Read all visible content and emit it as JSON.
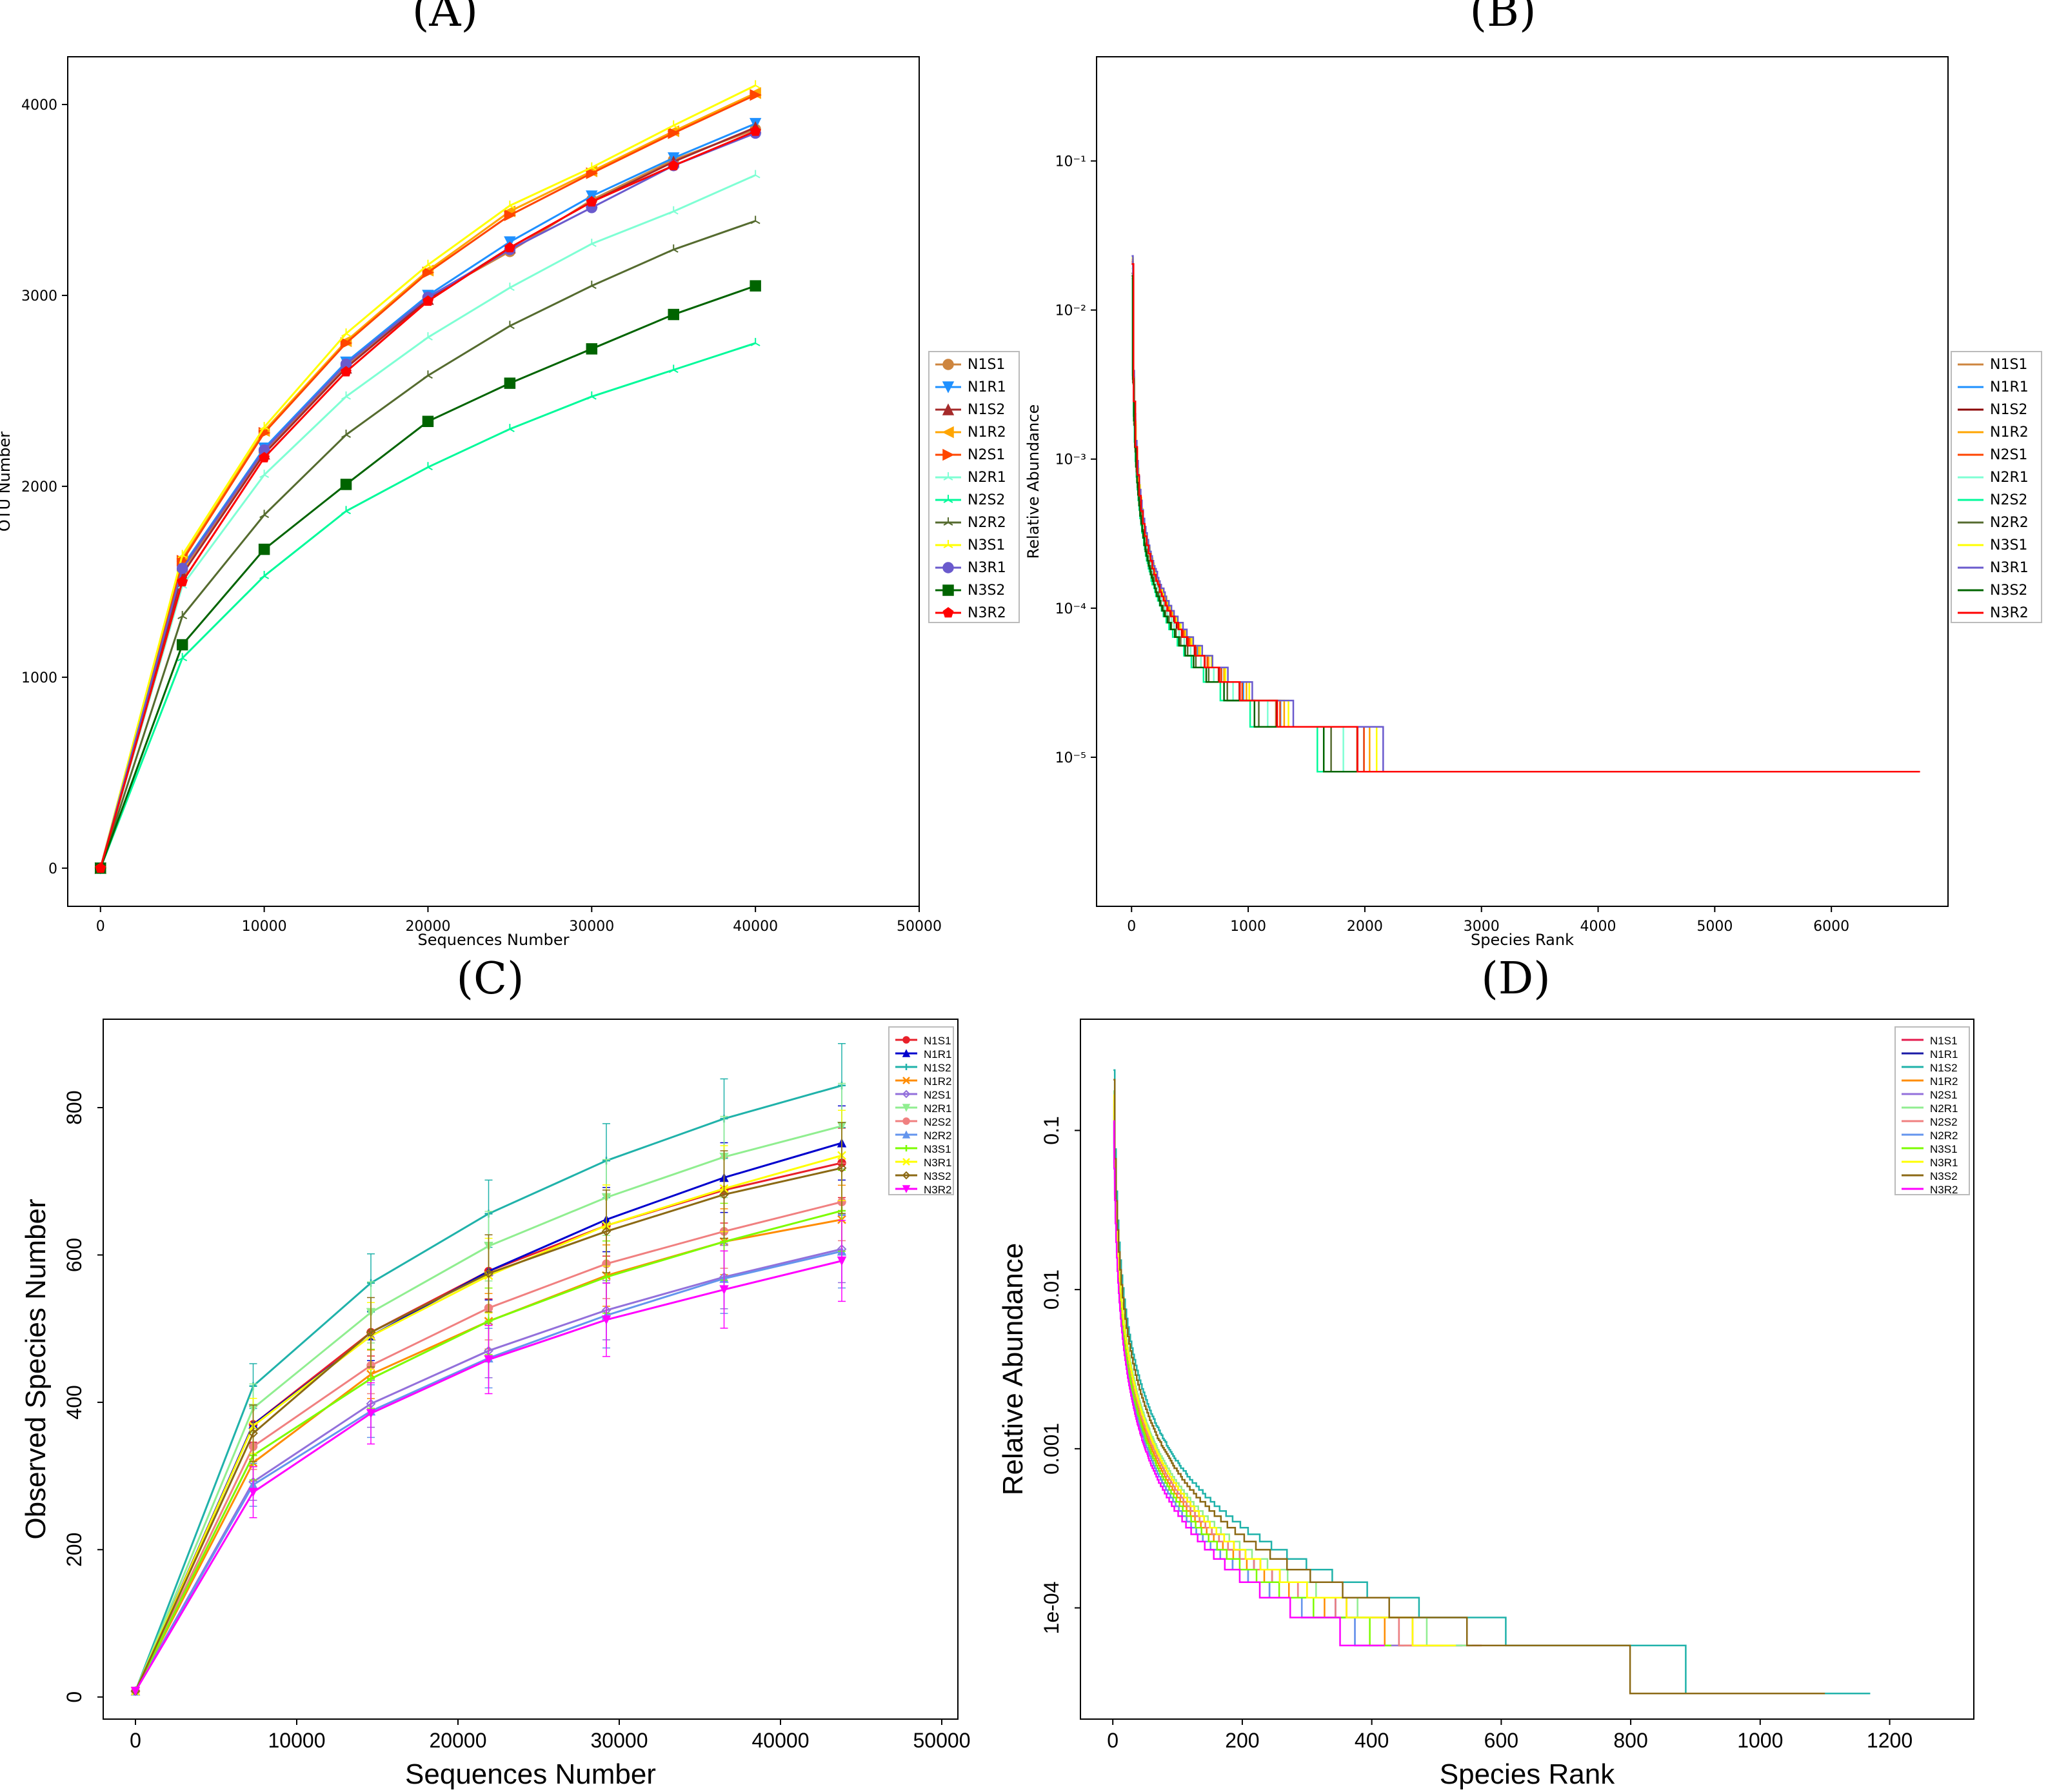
{
  "chart_data": [
    {
      "panel": "(A)",
      "type": "line",
      "xlabel": "Sequences Number",
      "ylabel": "OTU Number",
      "xlim": [
        -2000,
        50000
      ],
      "ylim": [
        -200,
        4250
      ],
      "xticks": [
        0,
        10000,
        20000,
        30000,
        40000,
        50000
      ],
      "yticks": [
        0,
        1000,
        2000,
        3000,
        4000
      ],
      "grid": false,
      "legend": "right",
      "x": [
        0,
        5000,
        10000,
        15000,
        20000,
        25000,
        30000,
        35000,
        40000
      ],
      "series": [
        {
          "name": "N1S1",
          "color": "#cd853f",
          "marker": "circle",
          "values": [
            0,
            1560,
            2180,
            2630,
            2990,
            3230,
            3500,
            3710,
            3870
          ]
        },
        {
          "name": "N1R1",
          "color": "#1e90ff",
          "marker": "triangle-down",
          "values": [
            0,
            1580,
            2200,
            2650,
            3000,
            3280,
            3520,
            3720,
            3900
          ]
        },
        {
          "name": "N1S2",
          "color": "#a52a2a",
          "marker": "triangle-up",
          "values": [
            0,
            1540,
            2170,
            2620,
            2980,
            3250,
            3490,
            3700,
            3880
          ]
        },
        {
          "name": "N1R2",
          "color": "#ffa500",
          "marker": "triangle-left",
          "values": [
            0,
            1620,
            2290,
            2760,
            3130,
            3440,
            3650,
            3860,
            4060
          ]
        },
        {
          "name": "N2S1",
          "color": "#ff4500",
          "marker": "triangle-right",
          "values": [
            0,
            1610,
            2280,
            2750,
            3120,
            3420,
            3640,
            3850,
            4050
          ]
        },
        {
          "name": "N2R1",
          "color": "#7fffd4",
          "marker": "tri",
          "values": [
            0,
            1480,
            2060,
            2470,
            2780,
            3040,
            3270,
            3440,
            3630
          ]
        },
        {
          "name": "N2S2",
          "color": "#00fa9a",
          "marker": "tri",
          "values": [
            0,
            1100,
            1530,
            1870,
            2100,
            2300,
            2470,
            2610,
            2750
          ]
        },
        {
          "name": "N2R2",
          "color": "#556b2f",
          "marker": "tri",
          "values": [
            0,
            1320,
            1850,
            2270,
            2580,
            2840,
            3050,
            3240,
            3390
          ]
        },
        {
          "name": "N3S1",
          "color": "#ffff00",
          "marker": "tri",
          "values": [
            0,
            1640,
            2310,
            2800,
            3160,
            3470,
            3670,
            3890,
            4100
          ]
        },
        {
          "name": "N3R1",
          "color": "#6a5acd",
          "marker": "circle",
          "values": [
            0,
            1570,
            2190,
            2640,
            2990,
            3240,
            3460,
            3680,
            3850
          ]
        },
        {
          "name": "N3S2",
          "color": "#006400",
          "marker": "square",
          "values": [
            0,
            1170,
            1670,
            2010,
            2340,
            2540,
            2720,
            2900,
            3050
          ]
        },
        {
          "name": "N3R2",
          "color": "#ff0000",
          "marker": "pentagon",
          "values": [
            0,
            1500,
            2150,
            2600,
            2970,
            3250,
            3490,
            3680,
            3860
          ]
        }
      ]
    },
    {
      "panel": "(B)",
      "type": "line",
      "xlabel": "Species Rank",
      "ylabel": "Relative Abundance",
      "xscale": "linear",
      "yscale": "log",
      "xlim": [
        -300,
        7000
      ],
      "ylim": [
        1e-06,
        0.5
      ],
      "xticks": [
        0,
        1000,
        2000,
        3000,
        4000,
        5000,
        6000
      ],
      "yticks": [
        0.1,
        0.01,
        0.001,
        0.0001,
        1e-05
      ],
      "ytick_labels": [
        "10⁻¹",
        "10⁻²",
        "10⁻³",
        "10⁻⁴",
        "10⁻⁵"
      ],
      "grid": false,
      "legend": "right",
      "series": [
        {
          "name": "N1S1",
          "color": "#cd853f",
          "max_rank": 4800,
          "c": 0.6
        },
        {
          "name": "N1R1",
          "color": "#1e90ff",
          "max_rank": 4700,
          "c": 0.62
        },
        {
          "name": "N1S2",
          "color": "#8b0000",
          "max_rank": 4650,
          "c": 0.6
        },
        {
          "name": "N1R2",
          "color": "#ffa500",
          "max_rank": 4900,
          "c": 0.64
        },
        {
          "name": "N2S1",
          "color": "#ff4500",
          "max_rank": 4950,
          "c": 0.62
        },
        {
          "name": "N2R1",
          "color": "#7fffd4",
          "max_rank": 4500,
          "c": 0.56
        },
        {
          "name": "N2S2",
          "color": "#00fa9a",
          "max_rank": 3580,
          "c": 0.48
        },
        {
          "name": "N2R2",
          "color": "#556b2f",
          "max_rank": 4230,
          "c": 0.52
        },
        {
          "name": "N3S1",
          "color": "#ffff00",
          "max_rank": 4880,
          "c": 0.66
        },
        {
          "name": "N3R1",
          "color": "#6a5acd",
          "max_rank": 4560,
          "c": 0.68
        },
        {
          "name": "N3S2",
          "color": "#006400",
          "max_rank": 3980,
          "c": 0.5
        },
        {
          "name": "N3R2",
          "color": "#ff0000",
          "max_rank": 6760,
          "c": 0.6
        }
      ]
    },
    {
      "panel": "(C)",
      "type": "line",
      "xlabel": "Sequences Number",
      "ylabel": "Observed Species Number",
      "xlim": [
        -2000,
        51000
      ],
      "ylim": [
        -30,
        920
      ],
      "xticks": [
        0,
        10000,
        20000,
        30000,
        40000,
        50000
      ],
      "yticks": [
        0,
        200,
        400,
        600,
        800
      ],
      "grid": false,
      "legend": "top-right",
      "x": [
        0,
        7300,
        14600,
        21900,
        29200,
        36500,
        43800
      ],
      "series": [
        {
          "name": "N1S1",
          "color": "#e8202a",
          "marker": "circle",
          "values": [
            8,
            370,
            495,
            578,
            640,
            688,
            725
          ]
        },
        {
          "name": "N1R1",
          "color": "#0000cd",
          "marker": "triangle-up",
          "values": [
            8,
            370,
            490,
            578,
            648,
            705,
            752
          ]
        },
        {
          "name": "N1S2",
          "color": "#20b2aa",
          "marker": "plus",
          "values": [
            8,
            422,
            562,
            656,
            728,
            785,
            830
          ]
        },
        {
          "name": "N1R2",
          "color": "#ff8c00",
          "marker": "cross",
          "values": [
            8,
            318,
            438,
            510,
            572,
            618,
            648
          ]
        },
        {
          "name": "N2S1",
          "color": "#9370db",
          "marker": "diamond",
          "values": [
            8,
            292,
            398,
            470,
            525,
            570,
            608
          ]
        },
        {
          "name": "N2R1",
          "color": "#90ee90",
          "marker": "triangle-down",
          "values": [
            8,
            392,
            522,
            612,
            678,
            733,
            775
          ]
        },
        {
          "name": "N2S2",
          "color": "#f08080",
          "marker": "circle",
          "values": [
            8,
            340,
            450,
            528,
            588,
            632,
            672
          ]
        },
        {
          "name": "N2R2",
          "color": "#6495ed",
          "marker": "triangle-up",
          "values": [
            8,
            288,
            388,
            460,
            518,
            568,
            605
          ]
        },
        {
          "name": "N3S1",
          "color": "#7cfc00",
          "marker": "plus",
          "values": [
            8,
            328,
            432,
            510,
            570,
            618,
            660
          ]
        },
        {
          "name": "N3R1",
          "color": "#ffff00",
          "marker": "cross",
          "values": [
            8,
            368,
            490,
            572,
            640,
            690,
            735
          ]
        },
        {
          "name": "N3S2",
          "color": "#8b6914",
          "marker": "diamond",
          "values": [
            8,
            358,
            495,
            575,
            632,
            682,
            718
          ]
        },
        {
          "name": "N3R2",
          "color": "#ff00ff",
          "marker": "triangle-down",
          "values": [
            8,
            278,
            385,
            458,
            512,
            553,
            592
          ]
        }
      ]
    },
    {
      "panel": "(D)",
      "type": "line",
      "xlabel": "Species Rank",
      "ylabel": "Relative Abundance",
      "xscale": "linear",
      "yscale": "log",
      "xlim": [
        -50,
        1330
      ],
      "ylim": [
        2e-05,
        0.5
      ],
      "xticks": [
        0,
        200,
        400,
        600,
        800,
        1000,
        1200
      ],
      "yticks": [
        0.1,
        0.01,
        0.001,
        0.0001
      ],
      "ytick_labels": [
        "0.1",
        "0.01",
        "0.001",
        "1e-04"
      ],
      "grid": false,
      "legend": "top-right",
      "series": [
        {
          "name": "N1S1",
          "color": "#e41a4c",
          "max_rank": 570,
          "c": 0.16
        },
        {
          "name": "N1R1",
          "color": "#1a1aa6",
          "max_rank": 540,
          "c": 0.15
        },
        {
          "name": "N1S2",
          "color": "#20b2aa",
          "max_rank": 1170,
          "c": 0.23
        },
        {
          "name": "N1R2",
          "color": "#ff8c00",
          "max_rank": 520,
          "c": 0.14
        },
        {
          "name": "N2S1",
          "color": "#9370db",
          "max_rank": 450,
          "c": 0.12
        },
        {
          "name": "N2R1",
          "color": "#90ee90",
          "max_rank": 555,
          "c": 0.17
        },
        {
          "name": "N2S2",
          "color": "#f08080",
          "max_rank": 510,
          "c": 0.15
        },
        {
          "name": "N2R2",
          "color": "#6495ed",
          "max_rank": 410,
          "c": 0.12
        },
        {
          "name": "N3S1",
          "color": "#7cfc00",
          "max_rank": 430,
          "c": 0.13
        },
        {
          "name": "N3R1",
          "color": "#ffff00",
          "max_rank": 530,
          "c": 0.16
        },
        {
          "name": "N3S2",
          "color": "#8b6914",
          "max_rank": 1100,
          "c": 0.2
        },
        {
          "name": "N3R2",
          "color": "#ff00ff",
          "max_rank": 420,
          "c": 0.11
        }
      ]
    }
  ]
}
